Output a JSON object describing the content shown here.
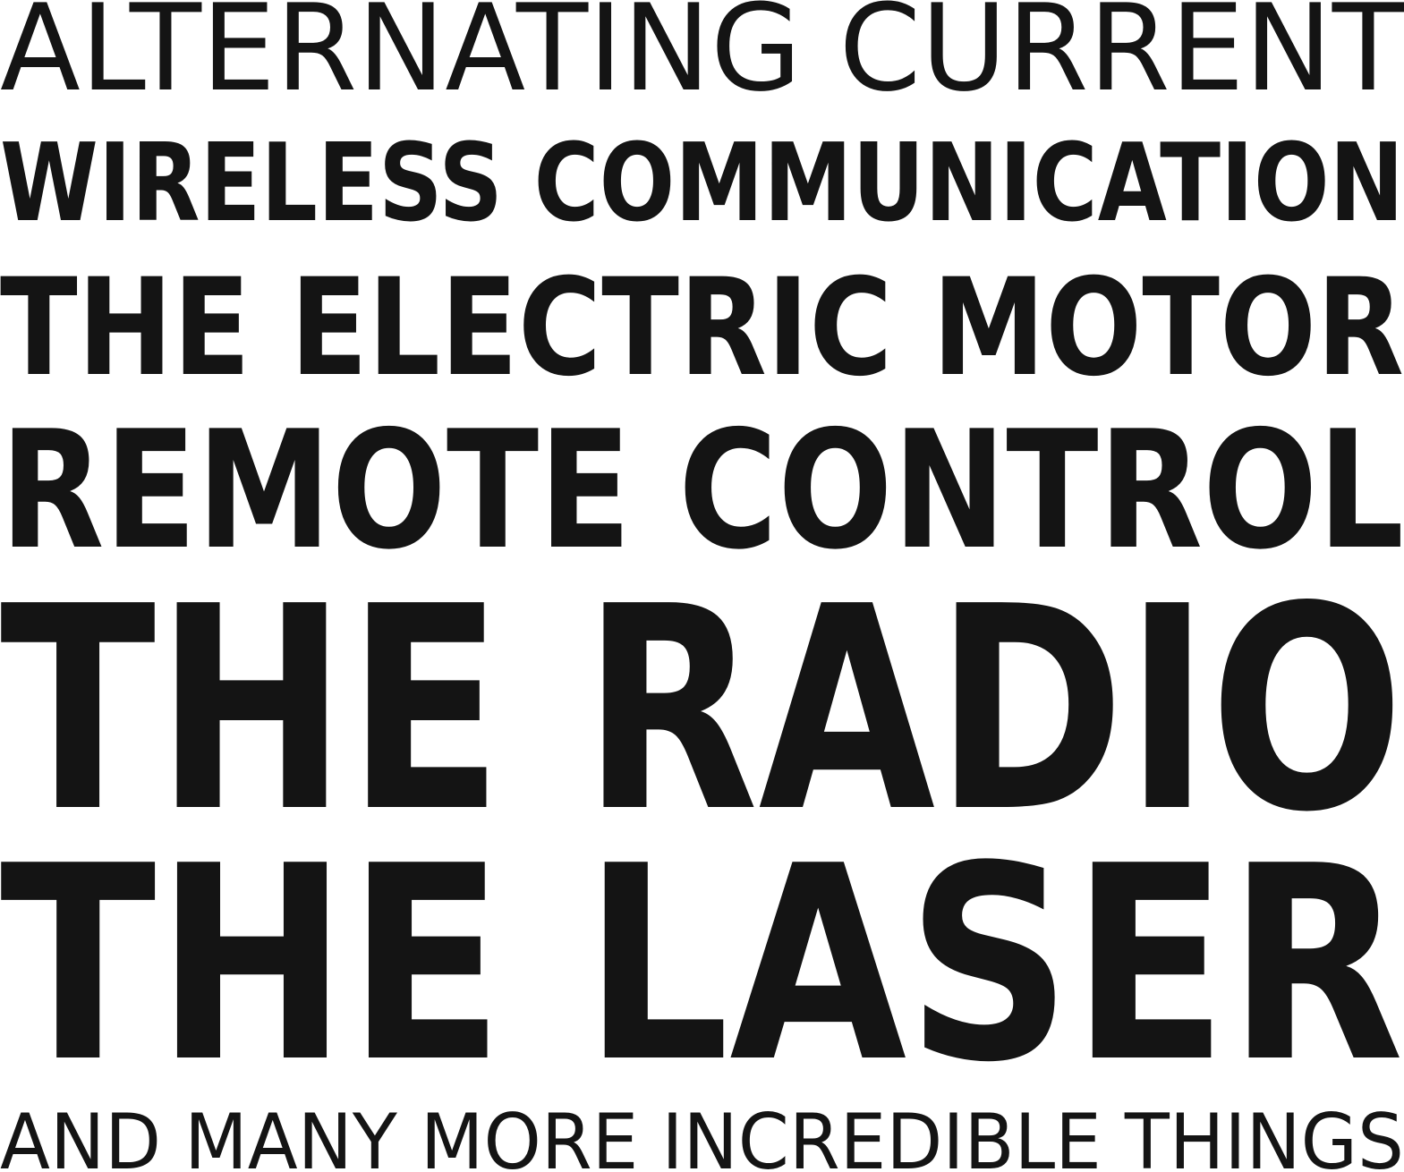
{
  "lines": [
    "ALTERNATING CURRENT",
    "WIRELESS COMMUNICATION",
    "THE ELECTRIC MOTOR",
    "REMOTE CONTROL",
    "THE RADIO",
    "THE LASER",
    "AND MANY MORE INCREDIBLE THINGS"
  ],
  "text_color": "#141414",
  "background_color": "#ffffff"
}
